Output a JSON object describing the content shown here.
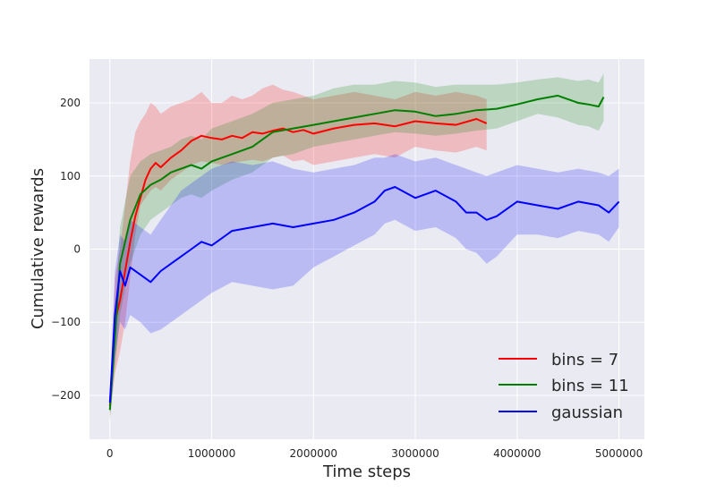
{
  "chart_data": {
    "type": "line",
    "xlabel": "Time steps",
    "ylabel": "Cumulative rewards",
    "xlim": [
      -200000,
      5250000
    ],
    "ylim": [
      -260,
      260
    ],
    "xticks": [
      0,
      1000000,
      2000000,
      3000000,
      4000000,
      5000000
    ],
    "xtick_labels": [
      "0",
      "1000000",
      "2000000",
      "3000000",
      "4000000",
      "5000000"
    ],
    "yticks": [
      -200,
      -100,
      0,
      100,
      200
    ],
    "ytick_labels": [
      "−200",
      "−100",
      "0",
      "100",
      "200"
    ],
    "grid": true,
    "legend_position": "bottom-right",
    "colors": {
      "background": "#eaeaf2",
      "grid": "#ffffff",
      "bins7": "#ff0000",
      "bins11": "#008000",
      "gaussian": "#0000ff"
    },
    "series": [
      {
        "name": "bins = 7",
        "color": "#ff0000",
        "band_alpha": 0.2,
        "x": [
          0,
          50000,
          100000,
          150000,
          200000,
          250000,
          300000,
          350000,
          400000,
          450000,
          500000,
          600000,
          700000,
          800000,
          900000,
          1000000,
          1100000,
          1200000,
          1300000,
          1400000,
          1500000,
          1600000,
          1700000,
          1800000,
          1900000,
          2000000,
          2200000,
          2400000,
          2600000,
          2800000,
          3000000,
          3200000,
          3400000,
          3600000,
          3700000
        ],
        "y": [
          -215,
          -100,
          -70,
          -30,
          10,
          45,
          70,
          95,
          110,
          118,
          112,
          125,
          135,
          148,
          155,
          152,
          150,
          155,
          152,
          160,
          158,
          162,
          165,
          160,
          163,
          158,
          165,
          170,
          172,
          168,
          175,
          172,
          170,
          178,
          172
        ],
        "lower": [
          -230,
          -170,
          -140,
          -100,
          -40,
          20,
          60,
          70,
          80,
          85,
          80,
          95,
          105,
          115,
          120,
          118,
          115,
          118,
          120,
          122,
          120,
          125,
          128,
          120,
          122,
          115,
          120,
          125,
          130,
          125,
          140,
          135,
          132,
          140,
          135
        ],
        "upper": [
          -205,
          -40,
          0,
          60,
          120,
          160,
          175,
          185,
          200,
          195,
          185,
          195,
          200,
          205,
          215,
          200,
          200,
          210,
          205,
          210,
          220,
          225,
          218,
          215,
          210,
          205,
          210,
          215,
          210,
          205,
          215,
          210,
          215,
          210,
          205
        ]
      },
      {
        "name": "bins = 11",
        "color": "#008000",
        "band_alpha": 0.2,
        "x": [
          0,
          100000,
          200000,
          300000,
          400000,
          500000,
          600000,
          700000,
          800000,
          900000,
          1000000,
          1200000,
          1400000,
          1600000,
          1800000,
          2000000,
          2200000,
          2400000,
          2600000,
          2800000,
          3000000,
          3200000,
          3400000,
          3600000,
          3800000,
          4000000,
          4200000,
          4400000,
          4600000,
          4700000,
          4800000,
          4850000
        ],
        "y": [
          -220,
          -20,
          40,
          75,
          88,
          95,
          105,
          110,
          115,
          110,
          120,
          130,
          140,
          160,
          165,
          170,
          175,
          180,
          185,
          190,
          188,
          182,
          185,
          190,
          192,
          198,
          205,
          210,
          200,
          198,
          195,
          208
        ],
        "lower": [
          -235,
          -90,
          -20,
          20,
          40,
          50,
          60,
          70,
          75,
          70,
          80,
          95,
          105,
          125,
          130,
          140,
          145,
          150,
          155,
          160,
          158,
          155,
          158,
          162,
          165,
          175,
          185,
          180,
          170,
          168,
          162,
          175
        ],
        "upper": [
          -205,
          30,
          100,
          120,
          130,
          135,
          140,
          150,
          155,
          150,
          165,
          175,
          185,
          200,
          205,
          210,
          220,
          225,
          225,
          230,
          228,
          222,
          225,
          225,
          225,
          228,
          232,
          235,
          230,
          232,
          228,
          240
        ]
      },
      {
        "name": "gaussian",
        "color": "#0000ff",
        "band_alpha": 0.2,
        "x": [
          0,
          50000,
          100000,
          150000,
          200000,
          300000,
          400000,
          500000,
          600000,
          700000,
          800000,
          900000,
          1000000,
          1200000,
          1400000,
          1600000,
          1800000,
          2000000,
          2200000,
          2400000,
          2600000,
          2700000,
          2800000,
          3000000,
          3200000,
          3400000,
          3500000,
          3600000,
          3700000,
          3800000,
          4000000,
          4200000,
          4400000,
          4600000,
          4800000,
          4900000,
          5000000
        ],
        "y": [
          -210,
          -90,
          -30,
          -50,
          -25,
          -35,
          -45,
          -30,
          -20,
          -10,
          0,
          10,
          5,
          25,
          30,
          35,
          30,
          35,
          40,
          50,
          65,
          80,
          85,
          70,
          80,
          65,
          50,
          50,
          40,
          45,
          65,
          60,
          55,
          65,
          60,
          50,
          65
        ],
        "lower": [
          -225,
          -150,
          -100,
          -110,
          -90,
          -100,
          -115,
          -110,
          -100,
          -90,
          -80,
          -70,
          -60,
          -45,
          -50,
          -55,
          -50,
          -25,
          -10,
          5,
          20,
          35,
          40,
          25,
          30,
          15,
          0,
          -5,
          -20,
          -10,
          20,
          20,
          15,
          25,
          20,
          10,
          30
        ],
        "upper": [
          -195,
          -30,
          20,
          10,
          40,
          30,
          20,
          40,
          60,
          80,
          90,
          100,
          110,
          120,
          115,
          120,
          110,
          105,
          110,
          115,
          125,
          125,
          130,
          120,
          125,
          115,
          110,
          105,
          100,
          105,
          115,
          110,
          105,
          110,
          105,
          100,
          110
        ]
      }
    ]
  }
}
